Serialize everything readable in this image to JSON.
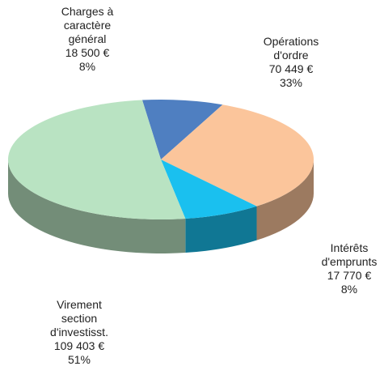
{
  "chart_data": {
    "type": "pie",
    "categories": [
      "Charges à\ncaractère\ngénéral",
      "Opérations\nd'ordre",
      "Intérêts\nd'emprunts",
      "Virement\nsection\nd'investisst."
    ],
    "values": [
      18500,
      70449,
      17770,
      109403
    ],
    "value_labels": [
      "18 500 €",
      "70 449 €",
      "17 770 €",
      "109 403 €"
    ],
    "shares": [
      {
        "value": 8,
        "label": "8%"
      },
      {
        "value": 33,
        "label": "33%"
      },
      {
        "value": 8,
        "label": "8%"
      },
      {
        "value": 51,
        "label": "51%"
      }
    ],
    "colors": [
      "#4f7fc1",
      "#fbc59b",
      "#1ac0ef",
      "#b9e3c2"
    ]
  }
}
